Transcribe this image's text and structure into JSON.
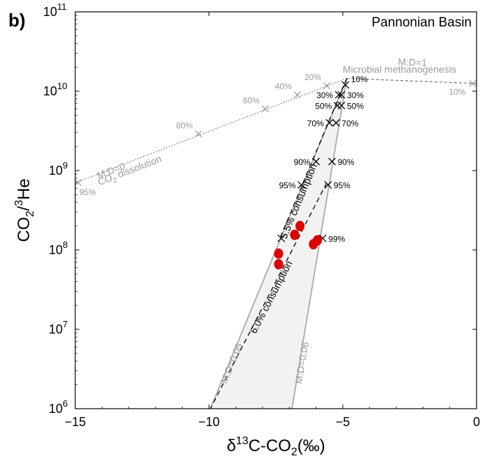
{
  "panel_label": "b)",
  "chart_data": {
    "type": "scatter",
    "title": "Pannonian Basin",
    "xlabel": "δ13C-CO2(‰)",
    "ylabel": "CO2/3He",
    "xlim": [
      -15,
      0
    ],
    "ylim": [
      1000000,
      100000000000
    ],
    "yscale": "log",
    "grid": false,
    "x_ticks": [
      -15,
      -10,
      -5,
      0
    ],
    "x_tick_labels": [
      "−15",
      "−10",
      "−5",
      "0"
    ],
    "y_ticks": [
      1000000,
      10000000,
      100000000,
      1000000000,
      10000000000,
      100000000000
    ],
    "y_tick_labels": [
      {
        "base": "10",
        "exp": "6"
      },
      {
        "base": "10",
        "exp": "7"
      },
      {
        "base": "10",
        "exp": "8"
      },
      {
        "base": "10",
        "exp": "9"
      },
      {
        "base": "10",
        "exp": "10"
      },
      {
        "base": "10",
        "exp": "11"
      }
    ],
    "colors": {
      "samples": "#dd0000",
      "model_gray": "#9a9a9a",
      "black": "#000000",
      "wedge_fill": "#f2f2f2"
    },
    "samples": {
      "name": "Pannonian Basin samples",
      "points": [
        {
          "x": -7.4,
          "y": 90000000
        },
        {
          "x": -7.4,
          "y": 66000000
        },
        {
          "x": -6.8,
          "y": 155000000
        },
        {
          "x": -6.6,
          "y": 200000000
        },
        {
          "x": -6.1,
          "y": 118000000
        },
        {
          "x": -5.95,
          "y": 132000000
        }
      ]
    },
    "lines": [
      {
        "name": "M:D=0",
        "label": "M:D=0",
        "style": "dotted",
        "color": "#777777",
        "points": [
          [
            -15,
            700000000
          ],
          [
            -4.85,
            14500000000
          ]
        ]
      },
      {
        "name": "M:D=1",
        "label": "M:D=1",
        "style": "dashed",
        "color": "#777777",
        "points": [
          [
            -4.85,
            14500000000
          ],
          [
            0,
            12500000000
          ]
        ]
      },
      {
        "name": "M:D=0.05",
        "label": "M:D=0.05",
        "style": "solid",
        "color": "#aaaaaa",
        "points": [
          [
            -4.85,
            14500000000
          ],
          [
            -9.95,
            1000000
          ]
        ]
      },
      {
        "name": "M:D=0.06",
        "label": "M:D=0.06",
        "style": "solid",
        "color": "#aaaaaa",
        "points": [
          [
            -4.85,
            14500000000
          ],
          [
            -6.9,
            1000000
          ]
        ]
      },
      {
        "name": "5.5% consumption",
        "label": "5.5% consumption",
        "style": "dashed",
        "color": "#000000",
        "points": [
          [
            -4.85,
            14500000000
          ],
          [
            -7.35,
            140000000
          ]
        ]
      },
      {
        "name": "6.0% consumption",
        "label": "6.0% consumption",
        "style": "dashed",
        "color": "#000000",
        "points": [
          [
            -5.6,
            700000000
          ],
          [
            -9.95,
            1000000
          ]
        ]
      }
    ],
    "text_labels": {
      "microbial": "Microbial methanogenesis",
      "co2_dissolution": {
        "base": "CO",
        "sub": "2",
        "rest": " dissolution"
      }
    },
    "md0_markers": [
      {
        "x": -14.9,
        "y": 710000000,
        "label": "95%"
      },
      {
        "x": -10.4,
        "y": 2900000000,
        "label": "80%"
      },
      {
        "x": -7.9,
        "y": 6000000000,
        "label": "60%"
      },
      {
        "x": -6.7,
        "y": 9000000000,
        "label": "40%"
      },
      {
        "x": -5.6,
        "y": 11700000000,
        "label": "20%"
      }
    ],
    "md1_markers": [
      {
        "x": -0.15,
        "y": 12500000000,
        "label": "10%"
      }
    ],
    "black_markers": [
      {
        "x": -4.9,
        "y": 12000000000,
        "label": "10%",
        "side": "right"
      },
      {
        "x": -5.05,
        "y": 9000000000,
        "label": "30%",
        "side": "right"
      },
      {
        "x": -5.15,
        "y": 9000000000,
        "label": "30%",
        "side": "left"
      },
      {
        "x": -5.05,
        "y": 6600000000,
        "label": "50%",
        "side": "right"
      },
      {
        "x": -5.2,
        "y": 6600000000,
        "label": "50%",
        "side": "left"
      },
      {
        "x": -5.25,
        "y": 4000000000,
        "label": "70%",
        "side": "right"
      },
      {
        "x": -5.5,
        "y": 4000000000,
        "label": "70%",
        "side": "left"
      },
      {
        "x": -5.4,
        "y": 1300000000,
        "label": "90%",
        "side": "right"
      },
      {
        "x": -6.0,
        "y": 1300000000,
        "label": "90%",
        "side": "left"
      },
      {
        "x": -5.55,
        "y": 660000000,
        "label": "95%",
        "side": "right"
      },
      {
        "x": -6.55,
        "y": 660000000,
        "label": "95%",
        "side": "left"
      },
      {
        "x": -5.75,
        "y": 140000000,
        "label": "99%",
        "side": "right"
      },
      {
        "x": -7.3,
        "y": 140000000,
        "label": "",
        "side": "left"
      }
    ]
  }
}
